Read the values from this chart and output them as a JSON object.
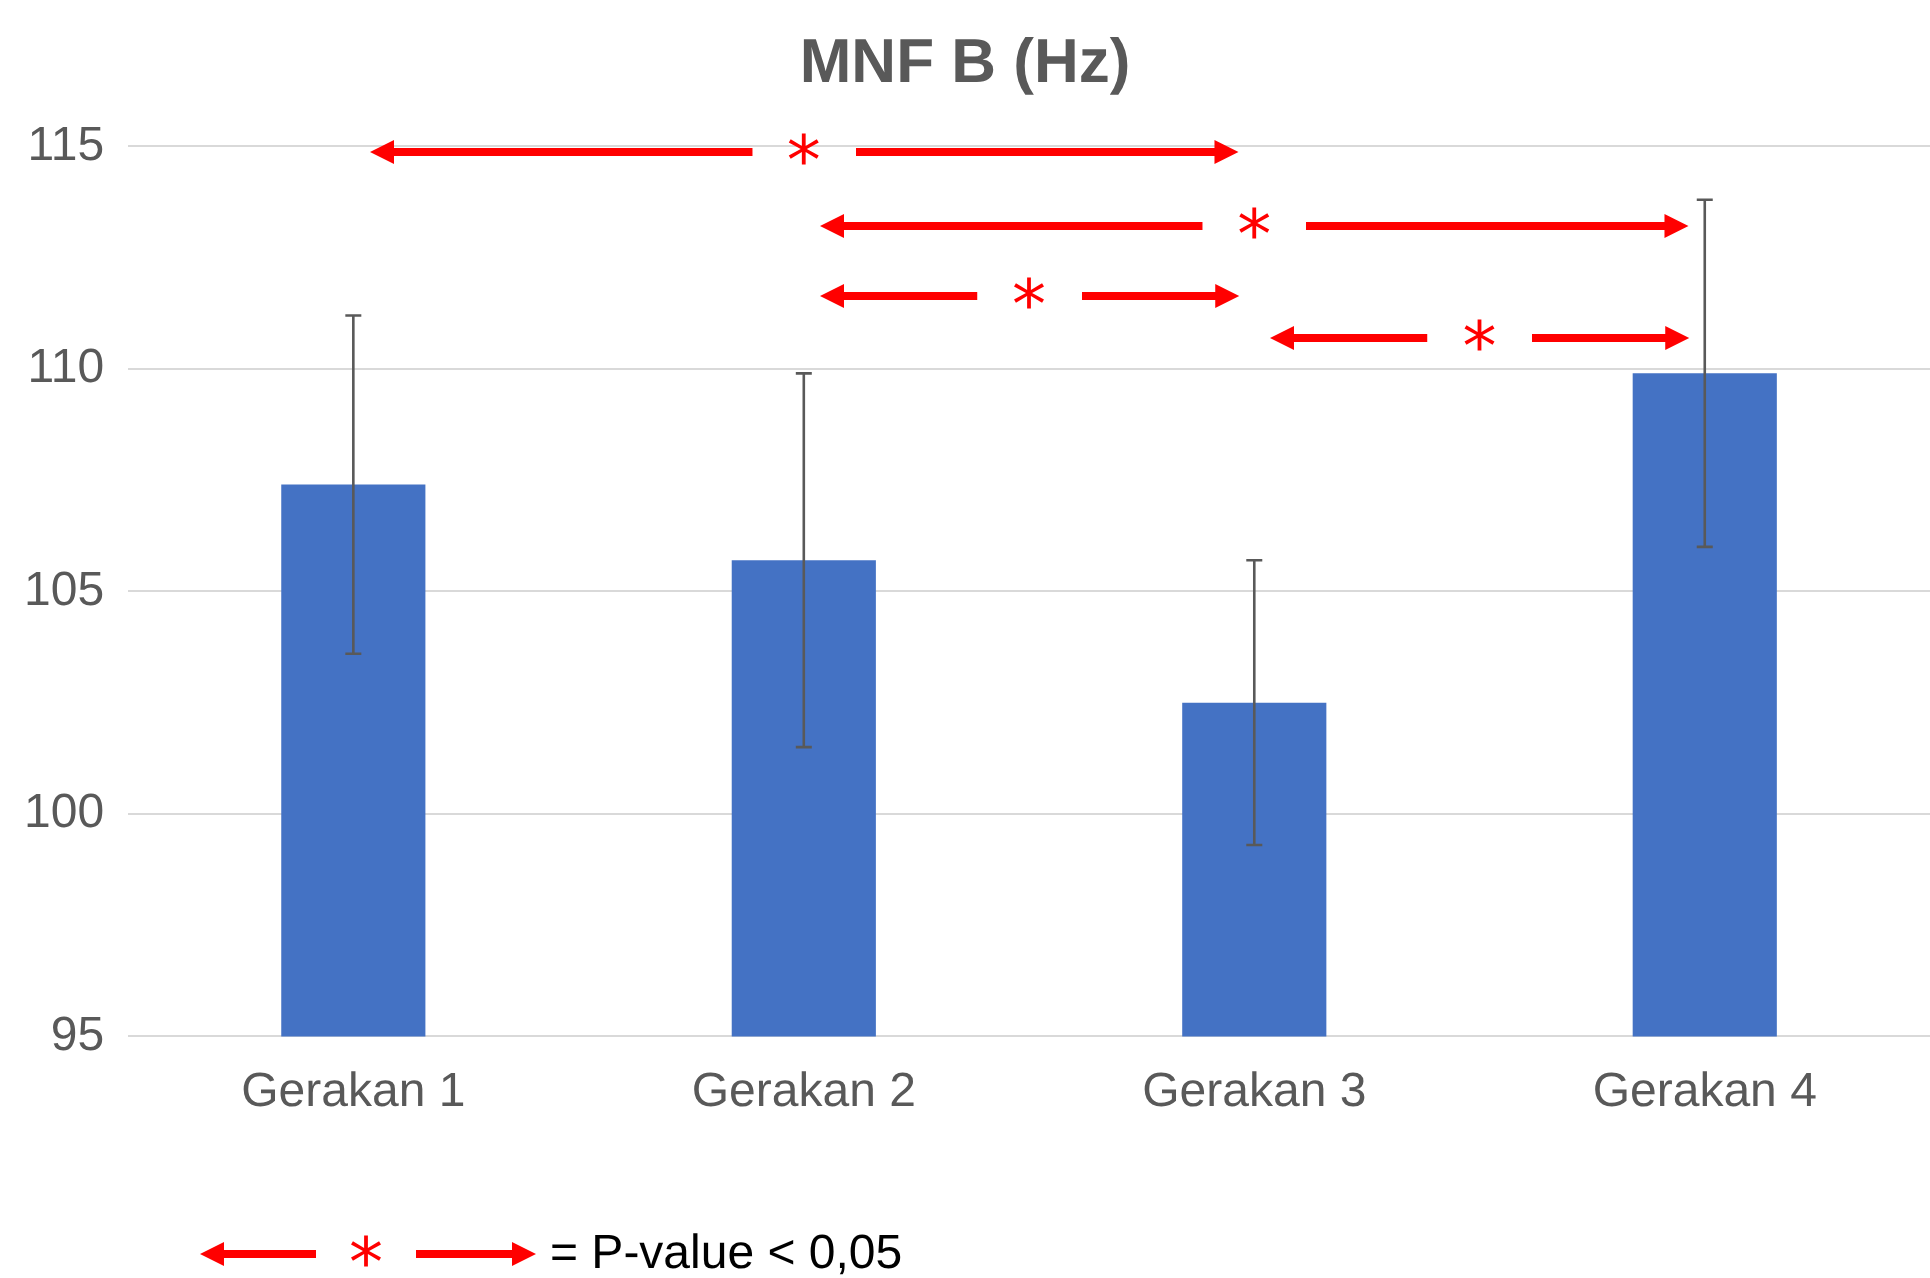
{
  "chart_data": {
    "type": "bar",
    "title": "MNF B (Hz)",
    "categories": [
      "Gerakan 1",
      "Gerakan 2",
      "Gerakan 3",
      "Gerakan 4"
    ],
    "values": [
      107.4,
      105.7,
      102.5,
      109.9
    ],
    "errors": [
      3.8,
      4.2,
      3.2,
      3.9
    ],
    "color": "#4472c4",
    "ylim": [
      95,
      115
    ],
    "yticks": [
      95,
      100,
      105,
      110,
      115
    ],
    "grid": "y",
    "legend": false,
    "annotations": [
      "*",
      "*",
      "*",
      "*",
      "*",
      "= P-value < 0,05"
    ]
  }
}
